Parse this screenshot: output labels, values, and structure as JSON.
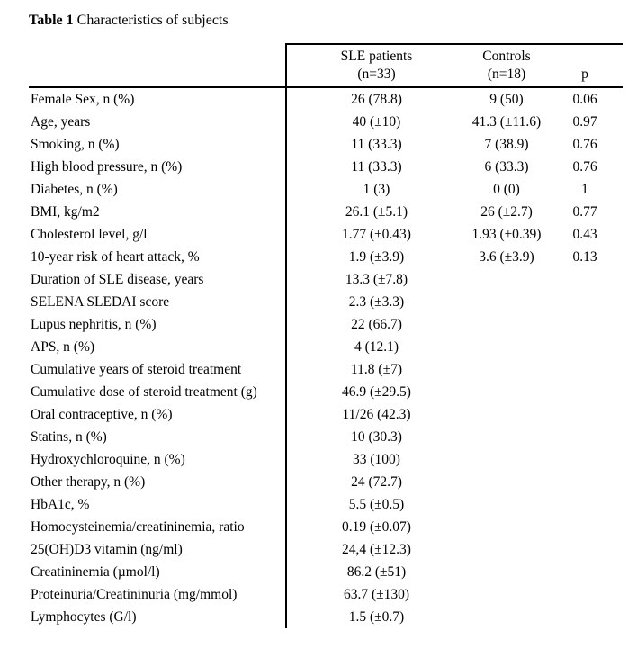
{
  "title": {
    "label": "Table 1",
    "text": " Characteristics of subjects"
  },
  "table": {
    "header": {
      "sle_line1": "SLE patients",
      "sle_line2": "(n=33)",
      "controls_line1": "Controls",
      "controls_line2": "(n=18)",
      "p": "p"
    },
    "rows": [
      {
        "label": "Female Sex, n (%)",
        "sle": "26 (78.8)",
        "ctrl": "9 (50)",
        "p": "0.06"
      },
      {
        "label": "Age, years",
        "sle": "40 (±10)",
        "ctrl": "41.3 (±11.6)",
        "p": "0.97"
      },
      {
        "label": "Smoking, n (%)",
        "sle": "11 (33.3)",
        "ctrl": "7 (38.9)",
        "p": "0.76"
      },
      {
        "label": "High blood pressure, n (%)",
        "sle": "11 (33.3)",
        "ctrl": "6 (33.3)",
        "p": "0.76"
      },
      {
        "label": "Diabetes, n (%)",
        "sle": "1 (3)",
        "ctrl": "0 (0)",
        "p": "1"
      },
      {
        "label": "BMI, kg/m2",
        "sle": "26.1 (±5.1)",
        "ctrl": "26 (±2.7)",
        "p": "0.77"
      },
      {
        "label": "Cholesterol level, g/l",
        "sle": "1.77 (±0.43)",
        "ctrl": "1.93 (±0.39)",
        "p": "0.43"
      },
      {
        "label": "10-year risk of heart attack, %",
        "sle": "1.9 (±3.9)",
        "ctrl": "3.6 (±3.9)",
        "p": "0.13"
      },
      {
        "label": "Duration of SLE disease, years",
        "sle": "13.3 (±7.8)",
        "ctrl": "",
        "p": ""
      },
      {
        "label": "SELENA SLEDAI score",
        "sle": "2.3 (±3.3)",
        "ctrl": "",
        "p": ""
      },
      {
        "label": "Lupus nephritis, n (%)",
        "sle": "22 (66.7)",
        "ctrl": "",
        "p": ""
      },
      {
        "label": "APS, n (%)",
        "sle": "4 (12.1)",
        "ctrl": "",
        "p": ""
      },
      {
        "label": "Cumulative years of steroid treatment",
        "sle": "11.8 (±7)",
        "ctrl": "",
        "p": ""
      },
      {
        "label": "Cumulative dose of steroid treatment (g)",
        "sle": "46.9 (±29.5)",
        "ctrl": "",
        "p": ""
      },
      {
        "label": "Oral contraceptive, n (%)",
        "sle": "11/26 (42.3)",
        "ctrl": "",
        "p": ""
      },
      {
        "label": "Statins, n (%)",
        "sle": "10 (30.3)",
        "ctrl": "",
        "p": ""
      },
      {
        "label": "Hydroxychloroquine, n (%)",
        "sle": "33 (100)",
        "ctrl": "",
        "p": ""
      },
      {
        "label": "Other therapy, n (%)",
        "sle": "24 (72.7)",
        "ctrl": "",
        "p": ""
      },
      {
        "label": "HbA1c, %",
        "sle": "5.5 (±0.5)",
        "ctrl": "",
        "p": ""
      },
      {
        "label": "Homocysteinemia/creatininemia, ratio",
        "sle": "0.19 (±0.07)",
        "ctrl": "",
        "p": ""
      },
      {
        "label": "25(OH)D3 vitamin (ng/ml)",
        "sle": "24,4 (±12.3)",
        "ctrl": "",
        "p": ""
      },
      {
        "label": "Creatininemia (µmol/l)",
        "sle": "86.2 (±51)",
        "ctrl": "",
        "p": ""
      },
      {
        "label": "Proteinuria/Creatininuria (mg/mmol)",
        "sle": "63.7 (±130)",
        "ctrl": "",
        "p": ""
      },
      {
        "label": "Lymphocytes (G/l)",
        "sle": "1.5 (±0.7)",
        "ctrl": "",
        "p": ""
      }
    ]
  }
}
